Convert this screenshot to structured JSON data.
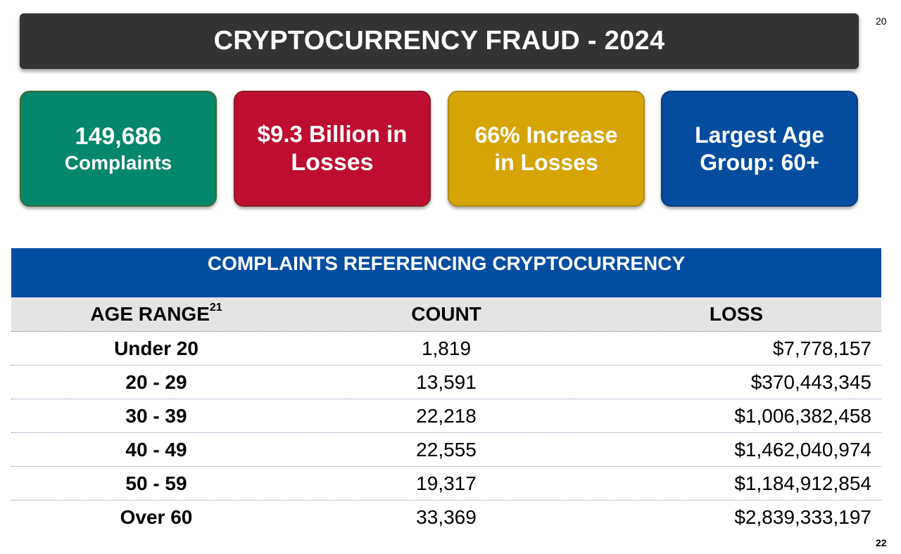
{
  "title": "CRYPTOCURRENCY FRAUD - 2024",
  "title_footnote": "20",
  "page_number": "22",
  "cards": [
    {
      "line1": "149,686",
      "line2": "Complaints",
      "color": "#04876a"
    },
    {
      "line1": "$9.3 Billion in",
      "line2": "Losses",
      "color": "#bd0e31"
    },
    {
      "line1": "66% Increase",
      "line2": "in Losses",
      "color": "#d6a405"
    },
    {
      "line1": "Largest Age",
      "line2": "Group: 60+",
      "color": "#034c9e"
    }
  ],
  "table": {
    "title": "COMPLAINTS REFERENCING CRYPTOCURRENCY",
    "headers": {
      "age": "AGE RANGE",
      "age_footnote": "21",
      "count": "COUNT",
      "loss": "LOSS"
    },
    "rows": [
      {
        "age": "Under 20",
        "count": "1,819",
        "loss": "$7,778,157"
      },
      {
        "age": "20 - 29",
        "count": "13,591",
        "loss": "$370,443,345"
      },
      {
        "age": "30 - 39",
        "count": "22,218",
        "loss": "$1,006,382,458"
      },
      {
        "age": "40 - 49",
        "count": "22,555",
        "loss": "$1,462,040,974"
      },
      {
        "age": "50 - 59",
        "count": "19,317",
        "loss": "$1,184,912,854"
      },
      {
        "age": "Over 60",
        "count": "33,369",
        "loss": "$2,839,333,197"
      }
    ]
  }
}
